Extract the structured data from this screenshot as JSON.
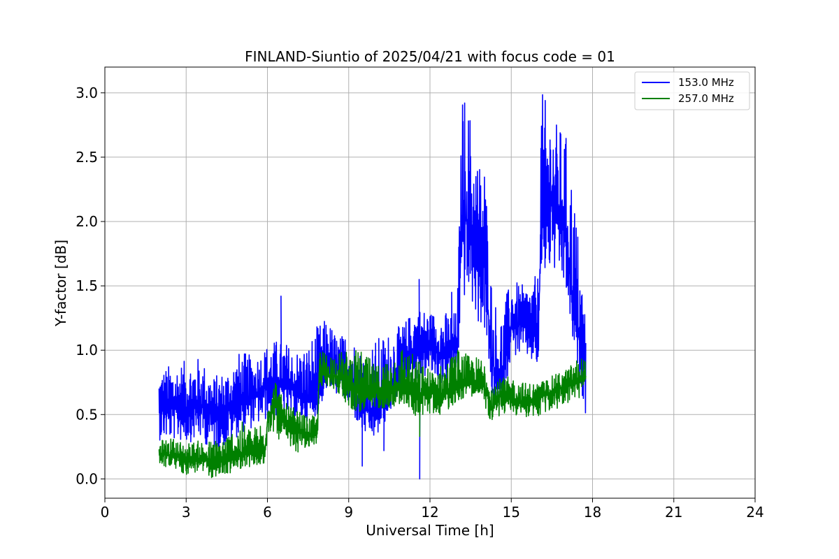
{
  "chart_data": {
    "type": "line",
    "title": "FINLAND-Siuntio of 2025/04/21 with focus code = 01",
    "xlabel": "Universal Time [h]",
    "ylabel": "Y-factor [dB]",
    "xlim": [
      0,
      24
    ],
    "ylim": [
      -0.15,
      3.2
    ],
    "xticks": [
      0,
      3,
      6,
      9,
      12,
      15,
      18,
      21,
      24
    ],
    "yticks": [
      0.0,
      0.5,
      1.0,
      1.5,
      2.0,
      2.5,
      3.0
    ],
    "ytick_labels": [
      "0.0",
      "0.5",
      "1.0",
      "1.5",
      "2.0",
      "2.5",
      "3.0"
    ],
    "grid": true,
    "legend_position": "top-right",
    "series": [
      {
        "name": "153.0 MHz",
        "color": "#0000ff",
        "x": [
          2.0,
          2.5,
          3.0,
          3.5,
          4.0,
          4.5,
          5.0,
          5.5,
          6.0,
          6.5,
          7.0,
          7.5,
          7.85,
          8.2,
          8.6,
          9.0,
          9.5,
          10.0,
          10.5,
          11.0,
          11.5,
          12.0,
          12.5,
          13.0,
          13.2,
          13.5,
          13.8,
          14.0,
          14.3,
          14.6,
          15.0,
          15.5,
          16.0,
          16.1,
          16.5,
          17.0,
          17.3,
          17.75
        ],
        "y": [
          0.55,
          0.55,
          0.55,
          0.58,
          0.5,
          0.55,
          0.6,
          0.65,
          0.72,
          0.75,
          0.68,
          0.62,
          0.68,
          0.9,
          0.85,
          0.8,
          0.55,
          0.5,
          0.7,
          0.95,
          1.0,
          1.05,
          0.95,
          1.05,
          2.1,
          1.9,
          1.6,
          1.7,
          0.9,
          0.7,
          1.2,
          1.2,
          1.1,
          2.0,
          2.2,
          1.9,
          1.3,
          0.85
        ],
        "lo": [
          0.3,
          0.3,
          0.28,
          0.3,
          0.22,
          0.25,
          0.35,
          0.4,
          0.45,
          0.5,
          0.45,
          0.45,
          0.5,
          0.7,
          0.65,
          0.55,
          0.35,
          0.3,
          0.5,
          0.7,
          0.75,
          0.8,
          0.72,
          0.8,
          1.4,
          1.35,
          1.2,
          1.15,
          0.55,
          0.5,
          0.95,
          0.95,
          0.85,
          1.55,
          1.6,
          1.45,
          1.0,
          0.5
        ],
        "hi": [
          0.85,
          0.9,
          0.92,
          0.95,
          0.8,
          0.85,
          1.0,
          0.95,
          1.05,
          1.1,
          1.0,
          1.05,
          1.2,
          1.25,
          1.1,
          1.15,
          1.0,
          1.1,
          1.15,
          1.2,
          1.35,
          1.3,
          1.3,
          1.3,
          3.05,
          2.85,
          2.5,
          2.55,
          1.45,
          1.3,
          1.55,
          1.5,
          1.6,
          3.04,
          2.8,
          2.7,
          2.3,
          1.28
        ],
        "spikes": [
          [
            6.5,
            1.42
          ],
          [
            9.5,
            0.1
          ],
          [
            10.3,
            0.22
          ],
          [
            11.62,
            0.0
          ],
          [
            11.6,
            1.55
          ],
          [
            12.8,
            1.45
          ]
        ]
      },
      {
        "name": "257.0 MHz",
        "color": "#008000",
        "x": [
          2.0,
          2.5,
          3.0,
          3.5,
          4.0,
          4.5,
          5.0,
          5.5,
          5.9,
          6.0,
          6.3,
          6.6,
          7.0,
          7.5,
          7.85,
          7.9,
          8.5,
          9.0,
          9.5,
          10.0,
          10.5,
          11.0,
          11.5,
          12.0,
          12.5,
          13.0,
          13.5,
          14.0,
          14.3,
          14.6,
          15.0,
          15.5,
          16.0,
          16.5,
          17.0,
          17.5,
          17.75
        ],
        "y": [
          0.2,
          0.18,
          0.15,
          0.16,
          0.12,
          0.15,
          0.18,
          0.2,
          0.2,
          0.45,
          0.62,
          0.45,
          0.38,
          0.35,
          0.35,
          0.82,
          0.8,
          0.75,
          0.65,
          0.68,
          0.7,
          0.72,
          0.65,
          0.68,
          0.65,
          0.75,
          0.78,
          0.72,
          0.55,
          0.65,
          0.62,
          0.6,
          0.62,
          0.68,
          0.72,
          0.75,
          0.8
        ],
        "lo": [
          0.1,
          0.08,
          0.03,
          0.05,
          0.0,
          0.03,
          0.08,
          0.1,
          0.08,
          0.32,
          0.38,
          0.18,
          0.2,
          0.22,
          0.28,
          0.72,
          0.7,
          0.55,
          0.5,
          0.55,
          0.55,
          0.58,
          0.48,
          0.5,
          0.5,
          0.6,
          0.65,
          0.58,
          0.4,
          0.5,
          0.5,
          0.48,
          0.48,
          0.52,
          0.58,
          0.62,
          0.7
        ],
        "hi": [
          0.3,
          0.32,
          0.28,
          0.3,
          0.3,
          0.35,
          0.45,
          0.4,
          0.5,
          0.58,
          0.78,
          0.6,
          0.55,
          0.48,
          0.5,
          1.0,
          0.98,
          1.0,
          1.0,
          0.88,
          0.95,
          1.05,
          0.95,
          0.85,
          0.9,
          1.02,
          0.95,
          0.95,
          0.8,
          0.78,
          0.8,
          0.75,
          0.75,
          0.8,
          0.85,
          0.95,
          0.95
        ],
        "spikes": [
          [
            11.62,
            0.33
          ]
        ]
      }
    ]
  }
}
